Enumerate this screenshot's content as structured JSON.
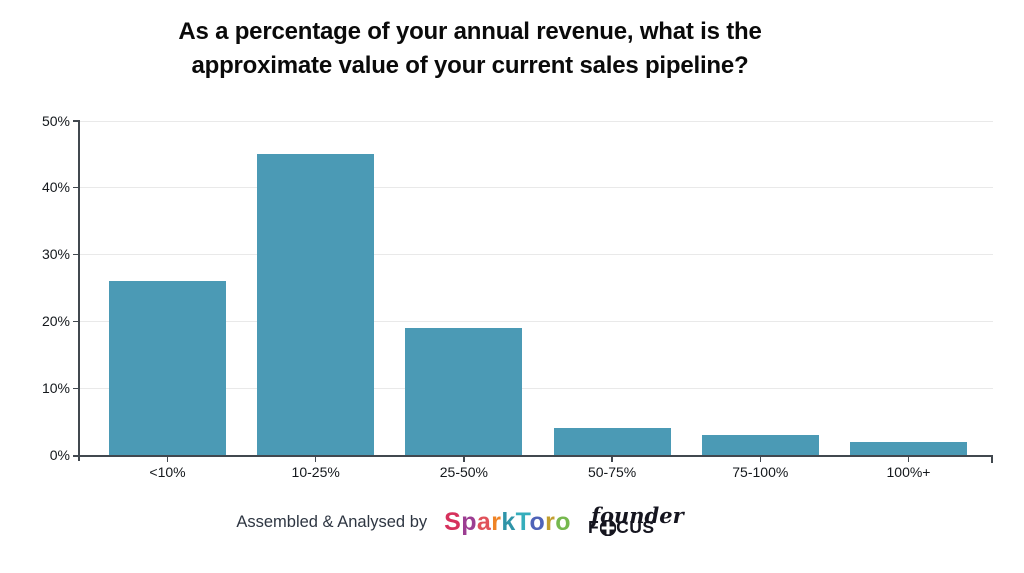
{
  "title": {
    "line1": "As a percentage of your annual revenue, what is the",
    "line2": "approximate value of your current sales pipeline?"
  },
  "chart_data": {
    "type": "bar",
    "title": "As a percentage of your annual revenue, what is the approximate value of your current sales pipeline?",
    "categories": [
      "<10%",
      "10-25%",
      "25-50%",
      "50-75%",
      "75-100%",
      "100%+"
    ],
    "values": [
      26,
      45,
      19,
      4,
      3,
      2
    ],
    "xlabel": "",
    "ylabel": "",
    "ylim": [
      0,
      50
    ],
    "yticks": [
      0,
      10,
      20,
      30,
      40,
      50
    ],
    "ytick_labels": [
      "0%",
      "10%",
      "20%",
      "30%",
      "40%",
      "50%"
    ],
    "grid": true,
    "legend": "none",
    "bar_color": "#4b9ab5",
    "axis_color": "#41484f",
    "gridline_color": "#e9e9e9"
  },
  "footer": {
    "credit_text": "Assembled & Analysed by",
    "sparktoro": {
      "letters": [
        {
          "ch": "S",
          "color": "#d6315c"
        },
        {
          "ch": "p",
          "color": "#9c3d92"
        },
        {
          "ch": "a",
          "color": "#e0515a"
        },
        {
          "ch": "r",
          "color": "#ef8325"
        },
        {
          "ch": "k",
          "color": "#2f94a8"
        },
        {
          "ch": "T",
          "color": "#35aebc"
        },
        {
          "ch": "o",
          "color": "#4f63b8"
        },
        {
          "ch": "r",
          "color": "#c29e2e"
        },
        {
          "ch": "o",
          "color": "#76b84e"
        }
      ]
    },
    "founder_focus": {
      "script_text": "founder",
      "caps_prefix": "F",
      "caps_suffix": "CUS",
      "gear_icon": "gear-o-icon",
      "color": "#15151f"
    }
  }
}
